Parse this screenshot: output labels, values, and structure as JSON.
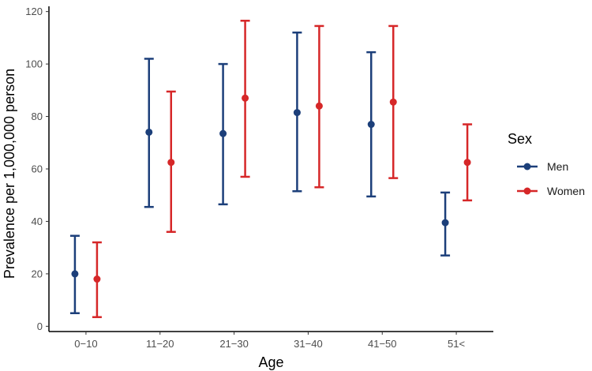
{
  "chart_data": {
    "type": "scatter",
    "subtype": "point-with-errorbars",
    "xlabel": "Age",
    "ylabel": "Prevalence per 1,000,000 person",
    "categories": [
      "0−10",
      "11−20",
      "21−30",
      "31−40",
      "41−50",
      "51<"
    ],
    "ylim": [
      -2,
      122
    ],
    "yticks": [
      0,
      20,
      40,
      60,
      80,
      100,
      120
    ],
    "grid": false,
    "legend": {
      "title": "Sex",
      "position": "right"
    },
    "series": [
      {
        "name": "Men",
        "color": "#1c3f7a",
        "values": [
          20,
          74,
          73.5,
          81.5,
          77,
          39.5
        ],
        "lower": [
          5,
          45.5,
          46.5,
          51.5,
          49.5,
          27
        ],
        "upper": [
          34.5,
          102,
          100,
          112,
          104.5,
          51
        ]
      },
      {
        "name": "Women",
        "color": "#d62728",
        "values": [
          18,
          62.5,
          87,
          84,
          85.5,
          62.5
        ],
        "lower": [
          3.5,
          36,
          57,
          53,
          56.5,
          48
        ],
        "upper": [
          32,
          89.5,
          116.5,
          114.5,
          114.5,
          77
        ]
      }
    ]
  }
}
